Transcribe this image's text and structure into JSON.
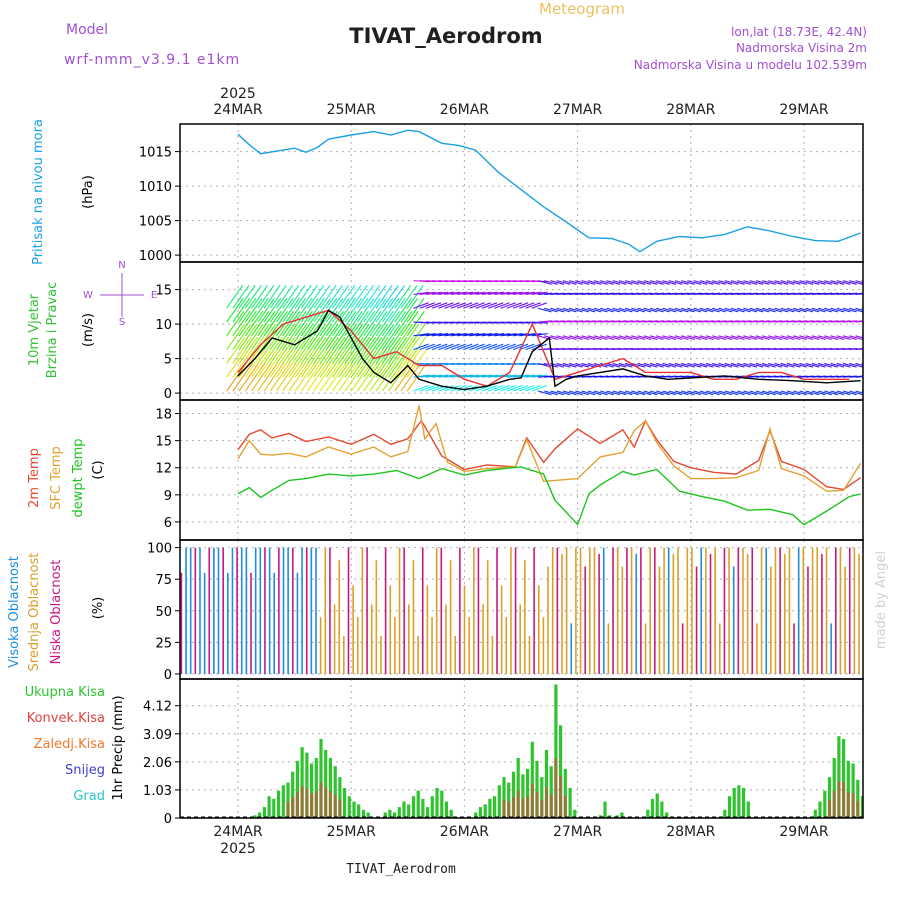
{
  "header": {
    "model_label": "Model",
    "model_name": "wrf-nmm_v3.9.1 e1km",
    "product": "Meteogram",
    "station": "TIVAT_Aerodrom",
    "lonlat": "lon,lat (18.73E, 42.4N)",
    "elevation": "Nadmorska Visina 2m",
    "model_elevation": "Nadmorska Visina u modelu 102.539m",
    "year": "2025",
    "watermark": "made by Angel",
    "footer_station": "TIVAT_Aerodrom"
  },
  "colors": {
    "pressure": "#1ba1e2",
    "wind_speed": "#000000",
    "gust": "#e83030",
    "temp2m": "#e34a33",
    "sfc": "#e3a133",
    "dewpt": "#1fc41f",
    "high_cloud": "#1f8de0",
    "mid_cloud": "#d9a02a",
    "low_cloud": "#c8187e",
    "total_precip": "#2ec42e",
    "conv_precip": "#e04040"
  },
  "chart_data": [
    {
      "type": "line",
      "id": "pressure",
      "ylabel": "Pritisak na nivou mora",
      "unit": "(hPa)",
      "x_days": [
        "24MAR",
        "25MAR",
        "26MAR",
        "27MAR",
        "28MAR",
        "29MAR"
      ],
      "yticks": [
        1000,
        1005,
        1010,
        1015
      ],
      "ylim": [
        999,
        1019
      ],
      "series": [
        {
          "x": [
            0,
            0.1,
            0.2,
            0.35,
            0.5,
            0.6,
            0.7,
            0.8,
            1.0,
            1.2,
            1.35,
            1.5,
            1.6,
            1.8,
            1.95,
            2.1,
            2.3,
            2.5,
            2.7,
            2.9,
            3.1,
            3.3,
            3.45,
            3.55,
            3.7,
            3.9,
            4.1,
            4.3,
            4.5,
            4.7,
            4.9,
            5.1,
            5.3,
            5.5
          ],
          "y": [
            1017.5,
            1016,
            1014.7,
            1015.1,
            1015.5,
            1014.9,
            1015.6,
            1016.8,
            1017.4,
            1017.9,
            1017.4,
            1018.1,
            1017.9,
            1016.2,
            1015.9,
            1015.2,
            1012,
            1009.5,
            1007,
            1004.8,
            1002.5,
            1002.4,
            1001.6,
            1000.5,
            1002,
            1002.7,
            1002.5,
            1003,
            1004.1,
            1003.5,
            1002.7,
            1002.1,
            1002,
            1003.2
          ]
        }
      ]
    },
    {
      "type": "line",
      "id": "wind",
      "ylabel": "10m Vjetar Brzina i Pravac",
      "unit": "(m/s)",
      "compass": {
        "n": "N",
        "w": "W",
        "e": "E",
        "s": "S"
      },
      "yticks": [
        0,
        5,
        10,
        15
      ],
      "ylim": [
        -1,
        19
      ],
      "series": [
        {
          "x": [
            0,
            0.15,
            0.3,
            0.5,
            0.7,
            0.8,
            0.9,
            1.0,
            1.1,
            1.2,
            1.35,
            1.5,
            1.6,
            1.8,
            2.0,
            2.2,
            2.4,
            2.5,
            2.6,
            2.75,
            2.8,
            2.9,
            3.0,
            3.2,
            3.4,
            3.6,
            3.8,
            4.0,
            4.3,
            4.6,
            4.9,
            5.2,
            5.5
          ],
          "y": [
            2.5,
            5,
            8,
            7,
            9,
            12,
            11,
            8,
            5,
            3,
            1.5,
            4,
            2,
            1,
            0.5,
            1,
            2,
            2.2,
            6,
            8,
            1,
            2,
            2.5,
            3,
            3.5,
            2.5,
            2,
            2.2,
            2.5,
            2,
            1.8,
            1.5,
            1.8
          ]
        },
        {
          "x": [
            0,
            0.2,
            0.4,
            0.6,
            0.8,
            1.0,
            1.2,
            1.4,
            1.6,
            1.8,
            2.0,
            2.2,
            2.4,
            2.6,
            2.8,
            3.0,
            3.2,
            3.4,
            3.6,
            3.8,
            4.0,
            4.2,
            4.4,
            4.6,
            4.8,
            5.0,
            5.2,
            5.4
          ],
          "y": [
            3,
            7,
            10,
            11,
            12,
            9,
            5,
            6,
            4,
            4,
            2,
            1,
            3,
            10,
            2,
            3,
            4,
            5,
            3,
            3,
            3,
            2,
            2,
            3,
            3,
            2,
            2,
            2
          ]
        }
      ]
    },
    {
      "type": "line",
      "id": "temperature",
      "labels": [
        "2m Temp",
        "SFC Temp",
        "dewpt Temp"
      ],
      "unit": "(C)",
      "yticks": [
        6,
        9,
        12,
        15,
        18
      ],
      "ylim": [
        4,
        19.5
      ],
      "series": [
        {
          "name": "2m Temp",
          "x": [
            0,
            0.1,
            0.2,
            0.3,
            0.45,
            0.6,
            0.8,
            1.0,
            1.2,
            1.35,
            1.5,
            1.62,
            1.7,
            1.8,
            2.0,
            2.2,
            2.45,
            2.55,
            2.7,
            2.8,
            3.0,
            3.2,
            3.4,
            3.5,
            3.6,
            3.7,
            3.85,
            4.0,
            4.2,
            4.4,
            4.6,
            4.7,
            4.8,
            5.0,
            5.2,
            5.35,
            5.5
          ],
          "y": [
            14,
            15.7,
            16.2,
            15.3,
            15.8,
            14.9,
            15.4,
            14.6,
            15.7,
            14.6,
            15.2,
            17.2,
            15.5,
            13.3,
            11.8,
            12.3,
            12.1,
            15.3,
            12.6,
            14.1,
            16.3,
            14.7,
            16.2,
            14.3,
            17.2,
            15.1,
            12.7,
            12,
            11.5,
            11.3,
            12.8,
            16.1,
            12.7,
            11.8,
            9.9,
            9.6,
            10.9
          ]
        },
        {
          "name": "SFC Temp",
          "x": [
            0,
            0.1,
            0.2,
            0.3,
            0.45,
            0.6,
            0.8,
            1.0,
            1.2,
            1.35,
            1.5,
            1.6,
            1.65,
            1.75,
            1.85,
            2.0,
            2.2,
            2.45,
            2.55,
            2.7,
            2.8,
            3.0,
            3.2,
            3.4,
            3.5,
            3.6,
            3.7,
            3.85,
            4.0,
            4.2,
            4.4,
            4.6,
            4.7,
            4.8,
            5.0,
            5.2,
            5.35,
            5.5
          ],
          "y": [
            13,
            15,
            13.5,
            13.4,
            13.6,
            13.2,
            14.3,
            13.5,
            14.3,
            13.2,
            13.8,
            18.9,
            15.2,
            16.9,
            12.6,
            11.6,
            11.9,
            12.1,
            15.1,
            10.5,
            10.6,
            10.8,
            13.2,
            13.7,
            16.1,
            17.2,
            14.8,
            12.2,
            10.8,
            10.8,
            10.9,
            11.7,
            16.3,
            11.9,
            11.1,
            9.4,
            9.5,
            12.5
          ]
        },
        {
          "name": "dewpt Temp",
          "x": [
            0,
            0.1,
            0.2,
            0.3,
            0.45,
            0.6,
            0.8,
            1.0,
            1.2,
            1.4,
            1.6,
            1.8,
            2.0,
            2.2,
            2.5,
            2.7,
            2.8,
            2.95,
            3.0,
            3.1,
            3.2,
            3.4,
            3.5,
            3.7,
            3.9,
            4.1,
            4.3,
            4.5,
            4.7,
            4.9,
            5.0,
            5.2,
            5.4,
            5.5
          ],
          "y": [
            9.1,
            9.8,
            8.7,
            9.5,
            10.6,
            10.8,
            11.3,
            11.1,
            11.3,
            11.7,
            10.8,
            11.9,
            11.2,
            11.7,
            12.1,
            11.3,
            8.4,
            6.4,
            5.7,
            9.1,
            10.1,
            11.6,
            11.2,
            11.8,
            9.4,
            8.8,
            8.3,
            7.3,
            7.4,
            6.8,
            5.7,
            7.2,
            8.8,
            9.1
          ]
        }
      ]
    },
    {
      "type": "bar",
      "id": "cloud",
      "labels": [
        "Visoka Oblacnost",
        "Srednja Oblacnost",
        "Niska Oblacnost"
      ],
      "unit": "(%)",
      "yticks": [
        0,
        25,
        50,
        75,
        100
      ],
      "ylim": [
        -4,
        106
      ]
    },
    {
      "type": "bar",
      "id": "precip",
      "labels": [
        "Ukupna Kisa",
        "Konvek.Kisa",
        "Zaledj.Kisa",
        "Snijeg",
        "Grad"
      ],
      "label_colors": [
        "#2ec42e",
        "#e04040",
        "#ee7a2a",
        "#4040d0",
        "#28c8c8"
      ],
      "ylabel": "1hr Precip (mm)",
      "yticks": [
        "0",
        "1.03",
        "2.06",
        "3.09",
        "4.12"
      ],
      "ytick_values": [
        0,
        1.03,
        2.06,
        3.09,
        4.12
      ],
      "ylim": [
        0,
        5.1
      ],
      "groups": [
        {
          "start": 0.15,
          "values": [
            0.1,
            0.2,
            0.4,
            0.8,
            0.7,
            1.0,
            1.2,
            1.3,
            1.7,
            2.1,
            2.6,
            2.4,
            2.0,
            2.2,
            2.9,
            2.5,
            2.2,
            1.9,
            1.5,
            1.1,
            0.8,
            0.6,
            0.5,
            0.3,
            0.2
          ]
        },
        {
          "start": 1.3,
          "values": [
            0.2,
            0.3,
            0.2,
            0.4,
            0.6,
            0.5,
            0.8,
            1.0,
            0.7,
            0.4,
            0.8,
            1.1,
            1.0,
            0.6,
            0.3
          ]
        },
        {
          "start": 2.1,
          "values": [
            0.2,
            0.4,
            0.5,
            0.7,
            0.8,
            1.2,
            1.5,
            1.3,
            1.7,
            2.2,
            1.6,
            1.8,
            2.8,
            2.1,
            1.5,
            2.5,
            1.9,
            4.9,
            3.4,
            1.8,
            1.1,
            0.3
          ]
        },
        {
          "start": 3.2,
          "values": [
            0.1,
            0.6,
            0.1
          ]
        },
        {
          "start": 3.35,
          "values": [
            0.1,
            0.2
          ]
        },
        {
          "start": 3.62,
          "values": [
            0.3,
            0.7,
            0.9,
            0.6,
            0.2
          ]
        },
        {
          "start": 4.3,
          "values": [
            0.3,
            0.8,
            1.1,
            1.2,
            1.1,
            0.6
          ]
        },
        {
          "start": 5.1,
          "values": [
            0.3,
            0.6,
            1.0,
            1.5,
            2.2,
            3.0,
            2.9,
            2.1,
            2.0,
            1.4,
            0.8
          ]
        }
      ]
    }
  ]
}
